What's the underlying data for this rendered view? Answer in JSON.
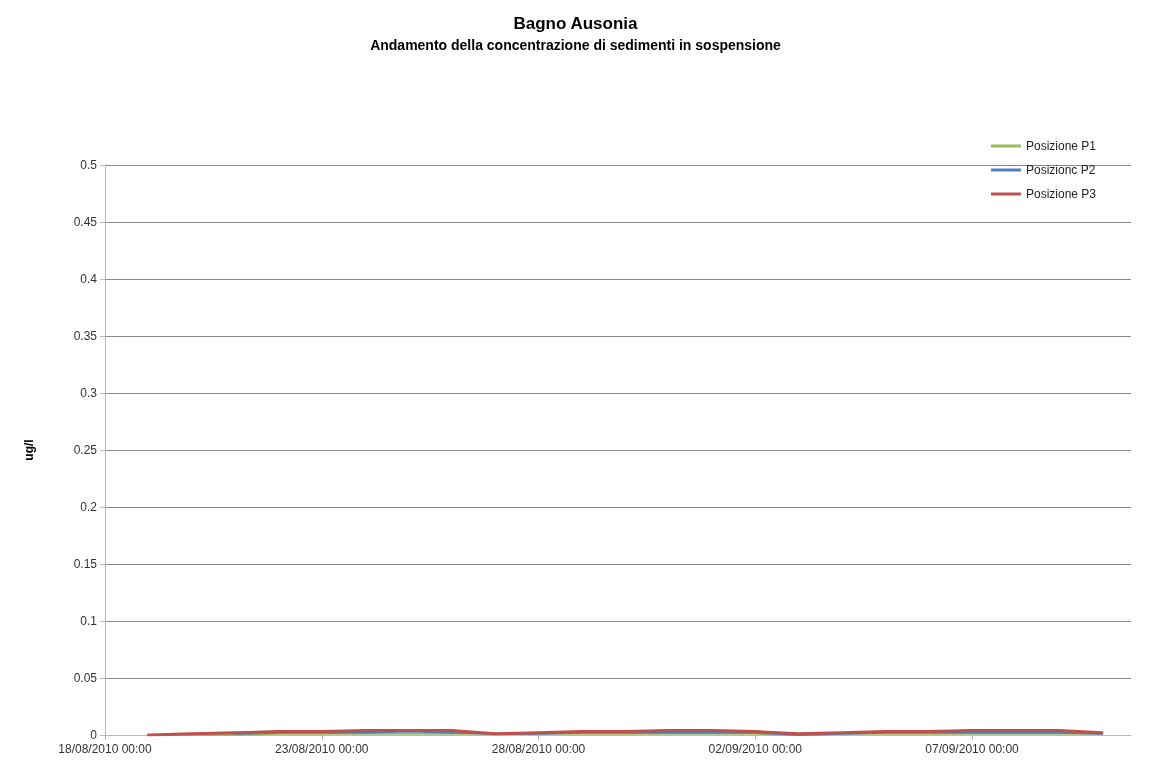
{
  "chart_data": {
    "type": "line",
    "title": "Bagno Ausonia",
    "subtitle": "Andamento della concentrazione di sedimenti in sospensione",
    "ylabel": "ug/l",
    "x": [
      "2010-08-19T00:00",
      "2010-08-20T00:00",
      "2010-08-21T00:00",
      "2010-08-22T00:00",
      "2010-08-23T00:00",
      "2010-08-24T00:00",
      "2010-08-25T00:00",
      "2010-08-26T00:00",
      "2010-08-27T00:00",
      "2010-08-28T00:00",
      "2010-08-29T00:00",
      "2010-08-30T00:00",
      "2010-08-31T00:00",
      "2010-09-01T00:00",
      "2010-09-02T00:00",
      "2010-09-03T00:00",
      "2010-09-04T00:00",
      "2010-09-05T00:00",
      "2010-09-06T00:00",
      "2010-09-07T00:00",
      "2010-09-08T00:00",
      "2010-09-09T00:00",
      "2010-09-10T00:00"
    ],
    "series": [
      {
        "name": "Posizione P1",
        "color": "#9bbb59",
        "values": [
          0,
          0,
          0,
          0.001,
          0.001,
          0.001,
          0.001,
          0.001,
          0.001,
          0.001,
          0.001,
          0.001,
          0.001,
          0.001,
          0.001,
          0,
          0.001,
          0.001,
          0.001,
          0.001,
          0.001,
          0.001,
          0.001
        ]
      },
      {
        "name": "Posizionc P2",
        "color": "#4f81bd",
        "values": [
          null,
          null,
          0.001,
          0.002,
          0.002,
          0.002,
          0.003,
          0.002,
          0.001,
          0.001,
          0.002,
          0.002,
          0.002,
          0.002,
          0.002,
          0,
          0.001,
          0.002,
          0.002,
          0.002,
          0.002,
          0.002,
          0.001
        ]
      },
      {
        "name": "Posizione P3",
        "color": "#c0504d",
        "values": [
          0,
          0.001,
          0.002,
          0.003,
          0.003,
          0.004,
          0.004,
          0.004,
          0.001,
          0.002,
          0.003,
          0.003,
          0.004,
          0.004,
          0.003,
          0.001,
          0.002,
          0.003,
          0.003,
          0.004,
          0.004,
          0.004,
          0.002
        ]
      }
    ],
    "xlim": [
      "2010-08-18T00:00",
      "2010-09-10T16:00"
    ],
    "xticks": [
      {
        "value": "2010-08-18T00:00",
        "label": "18/08/2010 00:00"
      },
      {
        "value": "2010-08-23T00:00",
        "label": "23/08/2010 00:00"
      },
      {
        "value": "2010-08-28T00:00",
        "label": "28/08/2010 00:00"
      },
      {
        "value": "2010-09-02T00:00",
        "label": "02/09/2010 00:00"
      },
      {
        "value": "2010-09-07T00:00",
        "label": "07/09/2010 00:00"
      }
    ],
    "ylim": [
      0,
      0.5
    ],
    "yticks": [
      0,
      0.05,
      0.1,
      0.15,
      0.2,
      0.25,
      0.3,
      0.35,
      0.4,
      0.45,
      0.5
    ],
    "grid": "y",
    "legend": "top right",
    "marker": "none",
    "line_style": "solid"
  }
}
